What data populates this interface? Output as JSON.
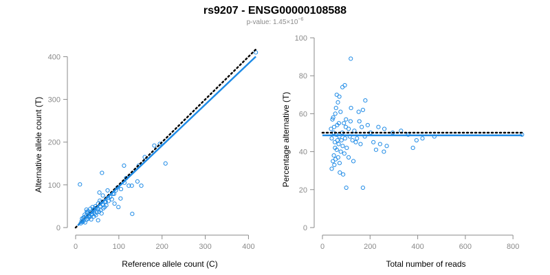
{
  "title": "rs9207 - ENSG00000108588",
  "subtitle": {
    "prefix": "p-value: 1.45×10",
    "exponent": "−6"
  },
  "colors": {
    "points": "#1f8be6",
    "fit": "#1f8be6",
    "reference_line": "#000000",
    "axis": "#8a8a8a",
    "title": "#000000"
  },
  "chart_data": [
    {
      "type": "scatter",
      "xlabel": "Reference allele count (C)",
      "ylabel": "Alternative allele count (T)",
      "xlim": [
        0,
        420
      ],
      "ylim": [
        0,
        420
      ],
      "xticks": [
        0,
        100,
        200,
        300,
        400
      ],
      "yticks": [
        0,
        100,
        200,
        300,
        400
      ],
      "grid": false,
      "points": [
        [
          10,
          101
        ],
        [
          61,
          128
        ],
        [
          160,
          165
        ],
        [
          182,
          192
        ],
        [
          146,
          145
        ],
        [
          112,
          145
        ],
        [
          208,
          150
        ],
        [
          195,
          196
        ],
        [
          131,
          32
        ],
        [
          113,
          105
        ],
        [
          105,
          90
        ],
        [
          117,
          116
        ],
        [
          97,
          94
        ],
        [
          130,
          98
        ],
        [
          152,
          98
        ],
        [
          143,
          108
        ],
        [
          123,
          98
        ],
        [
          74,
          87
        ],
        [
          86,
          79
        ],
        [
          93,
          87
        ],
        [
          67,
          60
        ],
        [
          89,
          79
        ],
        [
          55,
          82
        ],
        [
          75,
          70
        ],
        [
          63,
          75
        ],
        [
          29,
          38
        ],
        [
          52,
          56
        ],
        [
          52,
          17
        ],
        [
          99,
          48
        ],
        [
          90,
          56
        ],
        [
          104,
          68
        ],
        [
          30,
          25
        ],
        [
          21,
          30
        ],
        [
          35,
          36
        ],
        [
          26,
          19
        ],
        [
          16,
          13
        ],
        [
          44,
          45
        ],
        [
          38,
          32
        ],
        [
          48,
          46
        ],
        [
          42,
          26
        ],
        [
          26,
          37
        ],
        [
          33,
          25
        ],
        [
          59,
          59
        ],
        [
          40,
          41
        ],
        [
          18,
          23
        ],
        [
          22,
          12
        ],
        [
          47,
          29
        ],
        [
          34,
          44
        ],
        [
          24,
          27
        ],
        [
          15,
          21
        ],
        [
          64,
          45
        ],
        [
          57,
          50
        ],
        [
          49,
          36
        ],
        [
          36,
          19
        ],
        [
          27,
          34
        ],
        [
          39,
          48
        ],
        [
          44,
          32
        ],
        [
          58,
          41
        ],
        [
          76,
          62
        ],
        [
          70,
          60
        ],
        [
          80,
          72
        ],
        [
          52,
          43
        ],
        [
          67,
          48
        ],
        [
          12,
          10
        ],
        [
          19,
          16
        ],
        [
          29,
          21
        ],
        [
          25,
          42
        ],
        [
          37,
          30
        ],
        [
          46,
          50
        ],
        [
          56,
          63
        ],
        [
          71,
          52
        ],
        [
          84,
          66
        ],
        [
          60,
          33
        ],
        [
          54,
          37
        ],
        [
          62,
          54
        ],
        [
          43,
          40
        ],
        [
          31,
          28
        ],
        [
          20,
          24
        ],
        [
          14,
          15
        ],
        [
          417,
          410
        ]
      ],
      "reference_line": {
        "from": [
          0,
          0
        ],
        "to": [
          420,
          420
        ],
        "style": "dotted"
      },
      "fit_line": {
        "slope": 0.96,
        "intercept": 0
      }
    },
    {
      "type": "scatter",
      "xlabel": "Total number of reads",
      "ylabel": "Percentage alternative (T)",
      "xlim": [
        0,
        840
      ],
      "ylim": [
        0,
        100
      ],
      "xticks": [
        0,
        200,
        400,
        600,
        800
      ],
      "yticks": [
        0,
        20,
        40,
        60,
        80,
        100
      ],
      "grid": false,
      "points": [
        [
          119,
          89
        ],
        [
          94,
          75
        ],
        [
          84,
          74
        ],
        [
          60,
          70
        ],
        [
          71,
          69
        ],
        [
          65,
          66
        ],
        [
          180,
          67
        ],
        [
          152,
          61
        ],
        [
          170,
          62
        ],
        [
          120,
          63
        ],
        [
          54,
          60
        ],
        [
          76,
          61
        ],
        [
          45,
          58
        ],
        [
          99,
          57
        ],
        [
          118,
          56
        ],
        [
          90,
          55
        ],
        [
          62,
          54
        ],
        [
          49,
          53
        ],
        [
          110,
          52
        ],
        [
          134,
          51
        ],
        [
          83,
          50
        ],
        [
          58,
          49
        ],
        [
          71,
          48
        ],
        [
          95,
          47
        ],
        [
          126,
          46
        ],
        [
          52,
          45
        ],
        [
          68,
          44
        ],
        [
          85,
          43
        ],
        [
          102,
          42
        ],
        [
          60,
          41
        ],
        [
          77,
          40
        ],
        [
          92,
          39
        ],
        [
          48,
          38
        ],
        [
          66,
          37
        ],
        [
          55,
          36
        ],
        [
          44,
          35
        ],
        [
          72,
          34
        ],
        [
          50,
          33
        ],
        [
          39,
          31
        ],
        [
          80,
          46
        ],
        [
          155,
          56
        ],
        [
          190,
          54
        ],
        [
          235,
          53
        ],
        [
          260,
          52
        ],
        [
          295,
          50
        ],
        [
          330,
          51
        ],
        [
          360,
          49
        ],
        [
          395,
          46
        ],
        [
          420,
          47
        ],
        [
          214,
          45
        ],
        [
          242,
          44
        ],
        [
          270,
          43
        ],
        [
          225,
          41
        ],
        [
          258,
          40
        ],
        [
          110,
          37
        ],
        [
          130,
          35
        ],
        [
          160,
          44
        ],
        [
          178,
          48
        ],
        [
          202,
          50
        ],
        [
          100,
          21
        ],
        [
          170,
          21
        ],
        [
          73,
          29
        ],
        [
          87,
          28
        ],
        [
          145,
          47
        ],
        [
          165,
          53
        ],
        [
          57,
          63
        ],
        [
          42,
          57
        ],
        [
          36,
          52
        ],
        [
          47,
          50
        ],
        [
          39,
          47
        ],
        [
          53,
          42
        ],
        [
          63,
          46
        ],
        [
          69,
          55
        ],
        [
          98,
          53
        ],
        [
          115,
          48
        ],
        [
          140,
          45
        ],
        [
          380,
          42
        ],
        [
          470,
          48
        ],
        [
          838,
          49
        ]
      ],
      "reference_line": {
        "value": 50,
        "style": "dotted"
      },
      "fit_line": {
        "value": 48.6
      }
    }
  ]
}
